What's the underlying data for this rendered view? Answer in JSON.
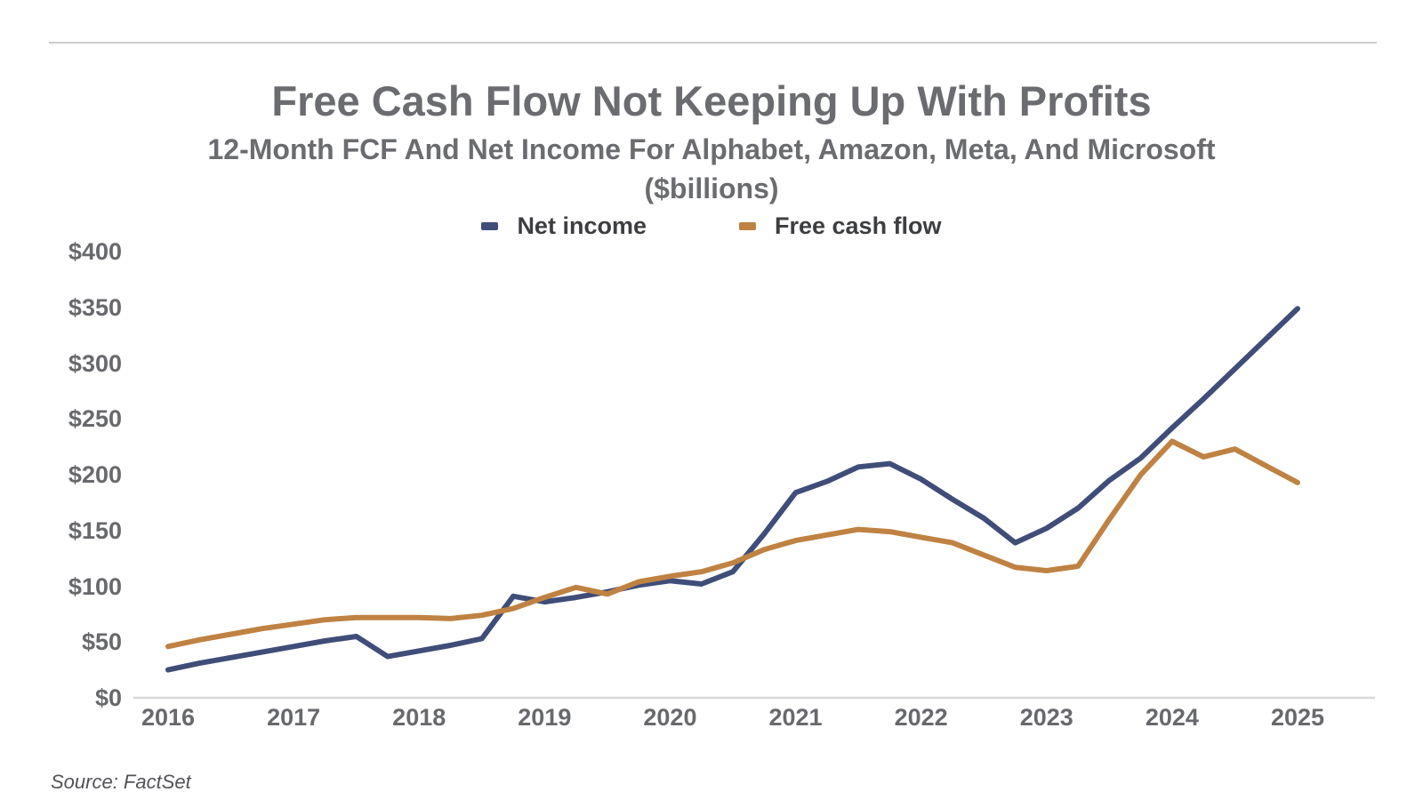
{
  "header": {
    "title": "Free Cash Flow Not Keeping Up With Profits",
    "subtitle_line1": "12-Month FCF And Net Income For Alphabet, Amazon, Meta, And Microsoft",
    "subtitle_line2": "($billions)"
  },
  "legend": {
    "items": [
      {
        "label": "Net income",
        "color": "#3f4d78"
      },
      {
        "label": "Free cash flow",
        "color": "#bf8243"
      }
    ]
  },
  "source": {
    "text": "Source: FactSet"
  },
  "colors": {
    "net_income_line": "#3f4d78",
    "free_cash_flow_line": "#bf8243",
    "title_text": "#6b6c6f",
    "axis_label_text": "#68696c",
    "legend_text": "#3d3e41",
    "divider_rule": "#cccccc",
    "axis_baseline": "#d9d9d9",
    "source_text": "#525357",
    "background": "#ffffff"
  },
  "chart_data": {
    "type": "line",
    "title": "Free Cash Flow Not Keeping Up With Profits",
    "subtitle": "12-Month FCF And Net Income For Alphabet, Amazon, Meta, And Microsoft ($billions)",
    "ylabel": "($billions)",
    "xlabel": "",
    "x_frequency": "quarterly",
    "ylim": [
      0,
      400
    ],
    "grid": false,
    "legend_position": "top",
    "x": [
      "2016 Q1",
      "2016 Q2",
      "2016 Q3",
      "2016 Q4",
      "2017 Q1",
      "2017 Q2",
      "2017 Q3",
      "2017 Q4",
      "2018 Q1",
      "2018 Q2",
      "2018 Q3",
      "2018 Q4",
      "2019 Q1",
      "2019 Q2",
      "2019 Q3",
      "2019 Q4",
      "2020 Q1",
      "2020 Q2",
      "2020 Q3",
      "2020 Q4",
      "2021 Q1",
      "2021 Q2",
      "2021 Q3",
      "2021 Q4",
      "2022 Q1",
      "2022 Q2",
      "2022 Q3",
      "2022 Q4",
      "2023 Q1",
      "2023 Q2",
      "2023 Q3",
      "2023 Q4",
      "2024 Q1",
      "2024 Q2",
      "2024 Q3",
      "2024 Q4",
      "2025 Q1"
    ],
    "series": [
      {
        "name": "Net income",
        "color": "#3f4d78",
        "values": [
          25,
          31,
          36,
          41,
          46,
          51,
          55,
          37,
          42,
          47,
          53,
          91,
          86,
          90,
          95,
          101,
          105,
          102,
          113,
          147,
          184,
          194,
          207,
          210,
          196,
          178,
          161,
          139,
          152,
          170,
          195,
          215,
          242,
          268,
          295,
          322,
          349
        ]
      },
      {
        "name": "Free cash flow",
        "color": "#bf8243",
        "values": [
          46,
          52,
          57,
          62,
          66,
          70,
          72,
          72,
          72,
          71,
          74,
          80,
          90,
          99,
          93,
          104,
          109,
          113,
          121,
          133,
          141,
          146,
          151,
          149,
          144,
          139,
          128,
          117,
          114,
          118,
          160,
          200,
          230,
          216,
          223,
          208,
          193
        ]
      }
    ],
    "y_ticks": [
      {
        "label": "$0",
        "value": 0
      },
      {
        "label": "$50",
        "value": 50
      },
      {
        "label": "$100",
        "value": 100
      },
      {
        "label": "$150",
        "value": 150
      },
      {
        "label": "$200",
        "value": 200
      },
      {
        "label": "$250",
        "value": 250
      },
      {
        "label": "$300",
        "value": 300
      },
      {
        "label": "$350",
        "value": 350
      },
      {
        "label": "$400",
        "value": 400
      }
    ],
    "x_ticks": [
      "2016",
      "2017",
      "2018",
      "2019",
      "2020",
      "2021",
      "2022",
      "2023",
      "2024",
      "2025"
    ]
  }
}
